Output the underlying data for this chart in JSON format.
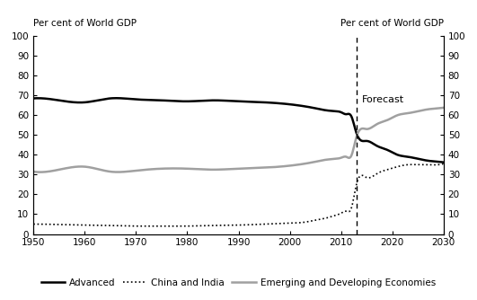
{
  "title_left": "Per cent of World GDP",
  "title_right": "Per cent of World GDP",
  "forecast_label": "Forecast",
  "forecast_year": 2013,
  "ylim": [
    0,
    100
  ],
  "yticks": [
    0,
    10,
    20,
    30,
    40,
    50,
    60,
    70,
    80,
    90,
    100
  ],
  "xlim": [
    1950,
    2030
  ],
  "xticks": [
    1950,
    1960,
    1970,
    1980,
    1990,
    2000,
    2010,
    2020,
    2030
  ],
  "advanced": {
    "years": [
      1950,
      1955,
      1960,
      1965,
      1970,
      1975,
      1980,
      1985,
      1990,
      1995,
      2000,
      2005,
      2007,
      2009,
      2010,
      2011,
      2012,
      2013,
      2015,
      2017,
      2019,
      2021,
      2023,
      2025,
      2027,
      2029,
      2030
    ],
    "values": [
      68.5,
      67.5,
      66.5,
      68.5,
      68.0,
      67.5,
      67.0,
      67.5,
      67.0,
      66.5,
      65.5,
      63.5,
      62.5,
      62.0,
      61.5,
      60.5,
      59.5,
      51.0,
      47.0,
      44.5,
      42.5,
      40.0,
      39.0,
      38.0,
      37.0,
      36.5,
      36.2
    ]
  },
  "china_india": {
    "years": [
      1950,
      1955,
      1960,
      1965,
      1970,
      1975,
      1980,
      1985,
      1990,
      1995,
      2000,
      2003,
      2005,
      2007,
      2009,
      2010,
      2011,
      2012,
      2013,
      2015,
      2017,
      2019,
      2021,
      2023,
      2025,
      2027,
      2029,
      2030
    ],
    "values": [
      5.0,
      4.8,
      4.5,
      4.3,
      4.0,
      4.0,
      4.0,
      4.3,
      4.5,
      5.0,
      5.5,
      6.0,
      7.0,
      8.0,
      9.5,
      10.5,
      11.5,
      13.0,
      25.0,
      28.5,
      30.5,
      32.5,
      34.0,
      35.0,
      35.0,
      35.0,
      35.0,
      35.5
    ]
  },
  "emerging": {
    "years": [
      1950,
      1955,
      1960,
      1965,
      1970,
      1975,
      1980,
      1985,
      1990,
      1995,
      2000,
      2005,
      2007,
      2009,
      2010,
      2011,
      2012,
      2013,
      2015,
      2017,
      2019,
      2021,
      2023,
      2025,
      2027,
      2029,
      2030
    ],
    "values": [
      31.5,
      32.5,
      34.0,
      31.5,
      32.0,
      33.0,
      33.0,
      32.5,
      33.0,
      33.5,
      34.5,
      36.5,
      37.5,
      38.0,
      38.5,
      39.0,
      39.5,
      49.0,
      53.0,
      55.5,
      57.5,
      60.0,
      61.0,
      62.0,
      63.0,
      63.5,
      63.8
    ]
  },
  "advanced_color": "#000000",
  "china_india_color": "#000000",
  "emerging_color": "#a0a0a0",
  "advanced_lw": 1.8,
  "china_india_lw": 1.2,
  "emerging_lw": 1.8,
  "legend_labels": [
    "Advanced",
    "China and India",
    "Emerging and Developing Economies"
  ]
}
